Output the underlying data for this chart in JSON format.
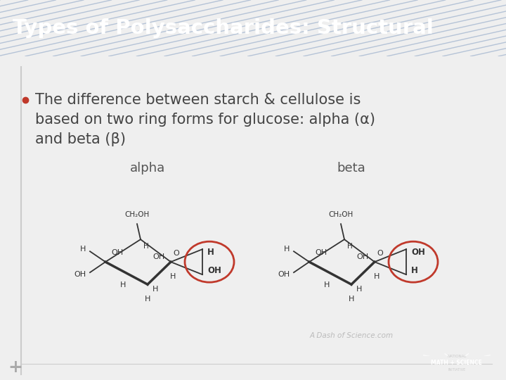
{
  "title": "Types of Polysaccharides: Structural",
  "title_bg_color": "#1F4E8C",
  "title_text_color": "#FFFFFF",
  "body_bg_color": "#EFEFEF",
  "content_bg_color": "#FFFFFF",
  "bullet_color": "#C0392B",
  "bullet_text_color": "#444444",
  "bullet_line1": "The difference between starch & cellulose is",
  "bullet_line2": "based on two ring forms for glucose: alpha (α)",
  "bullet_line3": "and beta (β)",
  "label_alpha": "alpha",
  "label_beta": "beta",
  "watermark": "A Dash of Science.com",
  "plus_color": "#AAAAAA",
  "accent_bar_color": "#AAAAAA",
  "ring_color": "#333333",
  "red_circle_color": "#C0392B",
  "logo_bg": "#1F4E8C",
  "logo_silver": "#B0B8C8"
}
